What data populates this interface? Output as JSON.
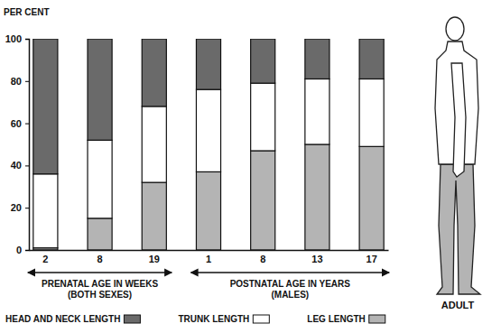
{
  "chart_data": {
    "type": "bar",
    "stacked": true,
    "ylabel": "PER CENT",
    "categories": [
      "2",
      "8",
      "19",
      "1",
      "8",
      "13",
      "17"
    ],
    "groups": [
      {
        "label": [
          "PRENATAL AGE IN WEEKS",
          "(BOTH SEXES)"
        ],
        "size": 3
      },
      {
        "label": [
          "POSTNATAL AGE IN YEARS",
          "(MALES)"
        ],
        "size": 4
      }
    ],
    "series": [
      {
        "name": "HEAD AND NECK LENGTH",
        "color": "#6a6a6a",
        "values": [
          64,
          48,
          32,
          24,
          21,
          19,
          19
        ]
      },
      {
        "name": "TRUNK LENGTH",
        "color": "#ffffff",
        "values": [
          35,
          37,
          36,
          39,
          32,
          31,
          32
        ]
      },
      {
        "name": "LEG LENGTH",
        "color": "#b4b4b4",
        "values": [
          1,
          15,
          32,
          37,
          47,
          50,
          49
        ]
      }
    ],
    "ylim": [
      0,
      100
    ],
    "yticks": [
      0,
      20,
      40,
      60,
      80,
      100
    ],
    "grid": false,
    "legend": "bottom",
    "annotations": [
      "ADULT"
    ]
  }
}
